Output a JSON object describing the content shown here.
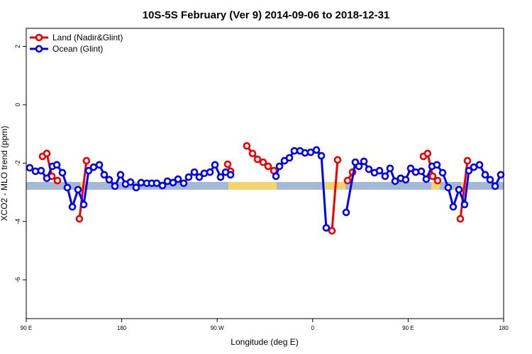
{
  "chart_data": {
    "type": "line",
    "title": "10S-5S February (Ver 9)   2014-09-06 to 2018-12-31",
    "xlabel": "Longitude (deg E)",
    "ylabel": "XCO2 - MLO trend (ppm)",
    "xlim": [
      90,
      540
    ],
    "xticks": [
      {
        "value": 90,
        "label": "90 E"
      },
      180,
      {
        "value": 270,
        "label": "90 W"
      },
      {
        "value": 360,
        "label": "0"
      },
      {
        "value": 450,
        "label": "90 E"
      },
      {
        "value": 540,
        "label": "180"
      }
    ],
    "ylim": [
      -7.33,
      2.62
    ],
    "yticks": [
      -6,
      -4,
      -2,
      0,
      2
    ],
    "legend": "top-left",
    "series": [
      {
        "name": "Land (Nadir&Glint)",
        "color": "#ee0000",
        "x": [
          105.4,
          109.4,
          114.1,
          119.4,
          null,
          140.1,
          146.8,
          null,
          279.9,
          282.6,
          null,
          297.9,
          303.3,
          308,
          313.3,
          318,
          323.4,
          null,
          378.2,
          383.5,
          null,
          392.9,
          397.6,
          null,
          464.4,
          468.4,
          473.1,
          477.8,
          null,
          499.2,
          505.9
        ],
        "values": [
          -1.77,
          -1.67,
          -2.45,
          -2.6,
          null,
          -3.91,
          -1.92,
          null,
          -2.04,
          -2.28,
          null,
          -1.41,
          -1.67,
          -1.87,
          -1.97,
          -2.11,
          -2.26,
          null,
          -4.32,
          -1.89,
          null,
          -2.6,
          -2.31,
          null,
          -1.77,
          -1.67,
          -2.45,
          -2.6,
          null,
          -3.91,
          -1.92
        ]
      },
      {
        "name": "Ocean (Glint)",
        "color": "#0000ee",
        "x": [
          93.3,
          98.7,
          104,
          109.4,
          114.7,
          118.8,
          124.1,
          128.8,
          133.5,
          138.8,
          144.2,
          148.8,
          153.5,
          158.9,
          163.5,
          168.2,
          173.6,
          178.9,
          183.6,
          188.3,
          193.6,
          198.3,
          203.7,
          208.3,
          213,
          218.4,
          223.1,
          228.4,
          233.1,
          238.4,
          243.1,
          248.5,
          253.1,
          257.8,
          263.2,
          267.9,
          273.2,
          277.9,
          282.6,
          null,
          325.4,
          328.7,
          333.4,
          338.1,
          342.7,
          348.1,
          352.8,
          358.1,
          363.5,
          368.2,
          372.8,
          null,
          391.6,
          400.2,
          403.6,
          408.3,
          412.9,
          418.3,
          423,
          428.3,
          433,
          437.7,
          443,
          447.7,
          452.4,
          457.1,
          462.4,
          467.1,
          472.5,
          477.1,
          482.5,
          487.8,
          492.5,
          497.9,
          503.2,
          507.2,
          511.9,
          517.3,
          522.6,
          527.3,
          532,
          537.3
        ],
        "values": [
          -2.16,
          -2.28,
          -2.26,
          -2.52,
          -2.11,
          -2.06,
          -2.33,
          -2.84,
          -3.5,
          -2.91,
          -3.42,
          -2.26,
          -2.14,
          -2.06,
          -2.4,
          -2.57,
          -2.79,
          -2.4,
          -2.72,
          -2.65,
          -2.84,
          -2.67,
          -2.69,
          -2.69,
          -2.69,
          -2.77,
          -2.62,
          -2.67,
          -2.55,
          -2.69,
          -2.48,
          -2.31,
          -2.48,
          -2.35,
          -2.31,
          -2.06,
          -2.48,
          -2.31,
          -2.4,
          null,
          -2.45,
          -2.11,
          -1.92,
          -1.82,
          -1.58,
          -1.58,
          -1.65,
          -1.63,
          -1.55,
          -1.75,
          -4.22,
          null,
          -3.69,
          -1.97,
          -2.11,
          -1.94,
          -2.21,
          -2.33,
          -2.26,
          -2.45,
          -2.18,
          -2.62,
          -2.52,
          -2.57,
          -2.18,
          -2.31,
          -2.28,
          -2.55,
          -2.11,
          -2.06,
          -2.33,
          -2.84,
          -3.5,
          -2.91,
          -3.42,
          -2.26,
          -2.14,
          -2.06,
          -2.4,
          -2.57,
          -2.79,
          -2.4
        ]
      }
    ]
  }
}
